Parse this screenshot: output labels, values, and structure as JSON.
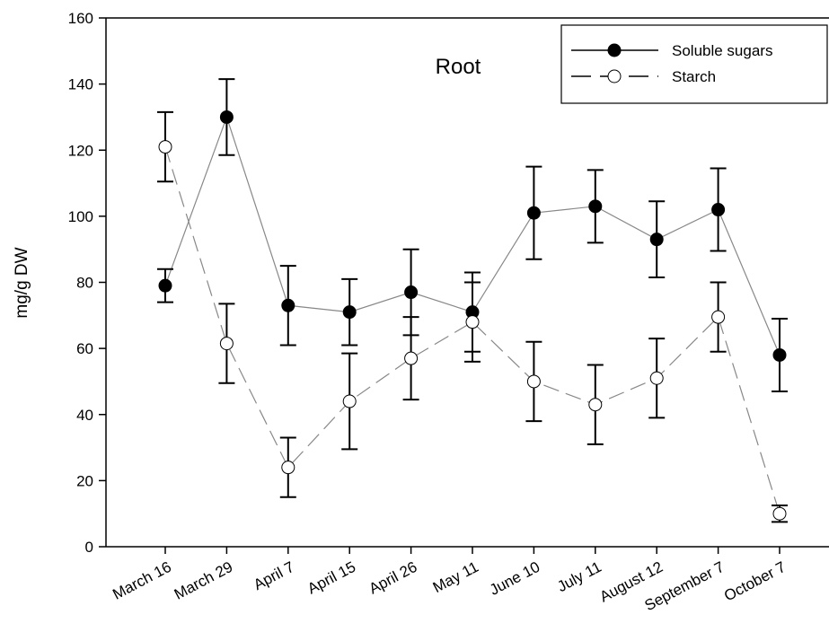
{
  "chart_data": {
    "type": "line",
    "annotation": "Root",
    "ylabel": "mg/g DW",
    "categories": [
      "March 16",
      "March 29",
      "April 7",
      "April 15",
      "April 26",
      "May 11",
      "June 10",
      "July 11",
      "August 12",
      "September 7",
      "October 7"
    ],
    "series": [
      {
        "name": "Soluble sugars",
        "color": "#000000",
        "marker": "filled",
        "dash": "solid",
        "values": [
          79,
          130,
          73,
          71,
          77,
          71,
          101,
          103,
          93,
          102,
          58
        ],
        "errors": [
          5,
          11.5,
          12,
          10,
          13,
          12,
          14,
          11,
          11.5,
          12.5,
          11
        ]
      },
      {
        "name": "Starch",
        "color": "#000000",
        "marker": "open",
        "dash": "dashed",
        "values": [
          121,
          61.5,
          24,
          44,
          57,
          68,
          50,
          43,
          51,
          69.5,
          10
        ],
        "errors": [
          10.5,
          12,
          9,
          14.5,
          12.5,
          12,
          12,
          12,
          12,
          10.5,
          2.5
        ]
      }
    ],
    "ylim": [
      0,
      160
    ],
    "yticks": [
      0,
      20,
      40,
      60,
      80,
      100,
      120,
      140,
      160
    ],
    "legend": "upper right"
  }
}
